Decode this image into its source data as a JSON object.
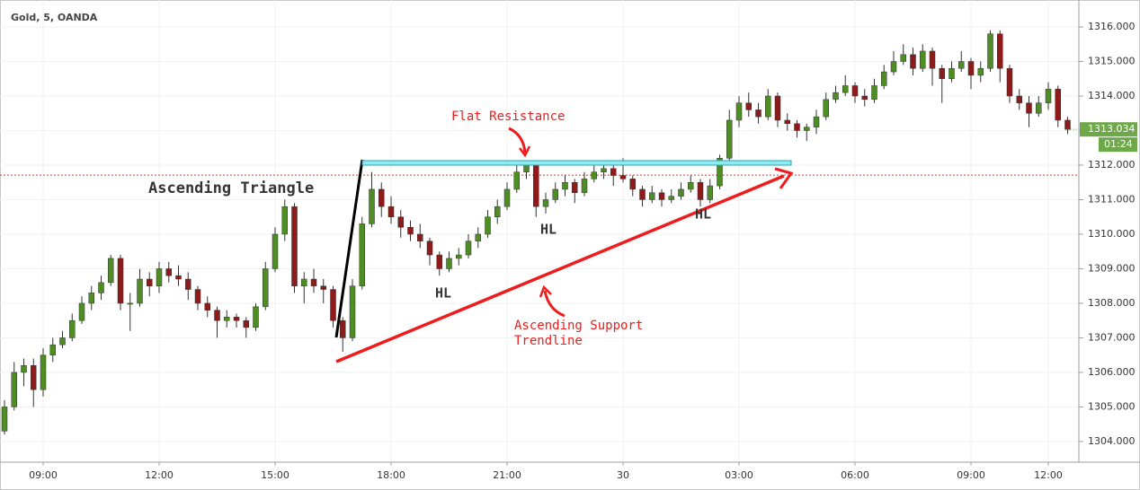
{
  "chart_data": {
    "type": "candlestick",
    "title": "Gold, 5, OANDA",
    "countdown": "01:24",
    "up_color": "#4e8d24",
    "down_color": "#8e1b1b",
    "grid": true,
    "ylim": [
      1303.4,
      1316.78
    ],
    "yticks": [
      {
        "value": 1304,
        "label": "1304.000"
      },
      {
        "value": 1305,
        "label": "1305.000"
      },
      {
        "value": 1306,
        "label": "1306.000"
      },
      {
        "value": 1307,
        "label": "1307.000"
      },
      {
        "value": 1308,
        "label": "1308.000"
      },
      {
        "value": 1309,
        "label": "1309.000"
      },
      {
        "value": 1310,
        "label": "1310.000"
      },
      {
        "value": 1311,
        "label": "1311.000"
      },
      {
        "value": 1312,
        "label": "1312.000"
      },
      {
        "value": 1313,
        "label": "1313.000"
      },
      {
        "value": 1314,
        "label": "1314.000"
      },
      {
        "value": 1315,
        "label": "1315.000"
      },
      {
        "value": 1316,
        "label": "1316.000"
      }
    ],
    "xticks": [
      {
        "value": 4,
        "label": "09:00"
      },
      {
        "value": 16,
        "label": "12:00"
      },
      {
        "value": 28,
        "label": "15:00"
      },
      {
        "value": 40,
        "label": "18:00"
      },
      {
        "value": 52,
        "label": "21:00"
      },
      {
        "value": 64,
        "label": "30"
      },
      {
        "value": 76,
        "label": "03:00"
      },
      {
        "value": 88,
        "label": "06:00"
      },
      {
        "value": 100,
        "label": "09:00"
      },
      {
        "value": 108,
        "label": "12:00"
      }
    ],
    "reference_line": 1311.71,
    "candles": [
      [
        1304.3,
        1305.2,
        1304.2,
        1305.0
      ],
      [
        1305.0,
        1306.3,
        1304.9,
        1306.0
      ],
      [
        1306.0,
        1306.4,
        1305.6,
        1306.2
      ],
      [
        1306.2,
        1306.4,
        1305.0,
        1305.5
      ],
      [
        1305.5,
        1306.7,
        1305.3,
        1306.5
      ],
      [
        1306.5,
        1307.0,
        1306.3,
        1306.8
      ],
      [
        1306.8,
        1307.2,
        1306.7,
        1307.0
      ],
      [
        1307.0,
        1307.7,
        1306.9,
        1307.5
      ],
      [
        1307.5,
        1308.2,
        1307.4,
        1308.0
      ],
      [
        1308.0,
        1308.5,
        1307.8,
        1308.3
      ],
      [
        1308.3,
        1308.8,
        1308.1,
        1308.6
      ],
      [
        1308.6,
        1309.4,
        1308.5,
        1309.3
      ],
      [
        1309.3,
        1309.4,
        1307.8,
        1308.0
      ],
      [
        1308.0,
        1308.3,
        1307.2,
        1308.0
      ],
      [
        1308.0,
        1309.0,
        1307.9,
        1308.7
      ],
      [
        1308.7,
        1308.9,
        1308.2,
        1308.5
      ],
      [
        1308.5,
        1309.2,
        1308.3,
        1309.0
      ],
      [
        1309.0,
        1309.2,
        1308.6,
        1308.8
      ],
      [
        1308.8,
        1309.1,
        1308.5,
        1308.7
      ],
      [
        1308.7,
        1308.9,
        1308.1,
        1308.4
      ],
      [
        1308.4,
        1308.5,
        1307.8,
        1308.0
      ],
      [
        1308.0,
        1308.2,
        1307.6,
        1307.8
      ],
      [
        1307.8,
        1307.9,
        1307.0,
        1307.5
      ],
      [
        1307.5,
        1307.8,
        1307.3,
        1307.6
      ],
      [
        1307.6,
        1307.7,
        1307.3,
        1307.5
      ],
      [
        1307.5,
        1307.6,
        1307.0,
        1307.3
      ],
      [
        1307.3,
        1308.0,
        1307.2,
        1307.9
      ],
      [
        1307.9,
        1309.2,
        1307.8,
        1309.0
      ],
      [
        1309.0,
        1310.2,
        1308.9,
        1310.0
      ],
      [
        1310.0,
        1311.0,
        1309.8,
        1310.8
      ],
      [
        1310.8,
        1310.9,
        1308.3,
        1308.5
      ],
      [
        1308.5,
        1308.9,
        1308.0,
        1308.7
      ],
      [
        1308.7,
        1309.0,
        1308.3,
        1308.5
      ],
      [
        1308.5,
        1308.7,
        1308.0,
        1308.4
      ],
      [
        1308.4,
        1308.5,
        1307.3,
        1307.5
      ],
      [
        1307.5,
        1307.6,
        1306.6,
        1307.0
      ],
      [
        1307.0,
        1308.7,
        1306.9,
        1308.5
      ],
      [
        1308.5,
        1310.5,
        1308.4,
        1310.3
      ],
      [
        1310.3,
        1311.8,
        1310.2,
        1311.3
      ],
      [
        1311.3,
        1311.5,
        1310.5,
        1310.8
      ],
      [
        1310.8,
        1311.1,
        1310.3,
        1310.5
      ],
      [
        1310.5,
        1310.7,
        1309.9,
        1310.2
      ],
      [
        1310.2,
        1310.4,
        1309.8,
        1310.0
      ],
      [
        1310.0,
        1310.3,
        1309.6,
        1309.8
      ],
      [
        1309.8,
        1309.9,
        1309.1,
        1309.4
      ],
      [
        1309.4,
        1309.5,
        1308.8,
        1309.0
      ],
      [
        1309.0,
        1309.5,
        1308.9,
        1309.3
      ],
      [
        1309.3,
        1309.6,
        1309.1,
        1309.4
      ],
      [
        1309.4,
        1310.0,
        1309.3,
        1309.8
      ],
      [
        1309.8,
        1310.2,
        1309.6,
        1310.0
      ],
      [
        1310.0,
        1310.7,
        1309.9,
        1310.5
      ],
      [
        1310.5,
        1311.0,
        1310.3,
        1310.8
      ],
      [
        1310.8,
        1311.5,
        1310.7,
        1311.3
      ],
      [
        1311.3,
        1312.0,
        1311.2,
        1311.8
      ],
      [
        1311.8,
        1312.1,
        1311.6,
        1312.0
      ],
      [
        1312.0,
        1312.0,
        1310.5,
        1310.8
      ],
      [
        1310.8,
        1311.2,
        1310.6,
        1311.0
      ],
      [
        1311.0,
        1311.5,
        1310.9,
        1311.3
      ],
      [
        1311.3,
        1311.7,
        1311.1,
        1311.5
      ],
      [
        1311.5,
        1311.6,
        1310.9,
        1311.2
      ],
      [
        1311.2,
        1311.8,
        1311.1,
        1311.6
      ],
      [
        1311.6,
        1312.0,
        1311.5,
        1311.8
      ],
      [
        1311.8,
        1312.1,
        1311.6,
        1311.9
      ],
      [
        1311.9,
        1312.0,
        1311.4,
        1311.7
      ],
      [
        1311.7,
        1312.2,
        1311.5,
        1311.6
      ],
      [
        1311.6,
        1311.7,
        1311.1,
        1311.3
      ],
      [
        1311.3,
        1311.4,
        1310.8,
        1311.0
      ],
      [
        1311.0,
        1311.4,
        1310.9,
        1311.2
      ],
      [
        1311.2,
        1311.3,
        1310.8,
        1311.0
      ],
      [
        1311.0,
        1311.3,
        1310.9,
        1311.1
      ],
      [
        1311.1,
        1311.5,
        1311.0,
        1311.3
      ],
      [
        1311.3,
        1311.7,
        1311.2,
        1311.5
      ],
      [
        1311.5,
        1311.6,
        1310.8,
        1311.0
      ],
      [
        1311.0,
        1311.6,
        1310.9,
        1311.4
      ],
      [
        1311.4,
        1312.3,
        1311.3,
        1312.2
      ],
      [
        1312.2,
        1313.6,
        1312.1,
        1313.3
      ],
      [
        1313.3,
        1314.0,
        1313.1,
        1313.8
      ],
      [
        1313.8,
        1314.1,
        1313.4,
        1313.6
      ],
      [
        1313.6,
        1313.8,
        1313.2,
        1313.4
      ],
      [
        1313.4,
        1314.2,
        1313.3,
        1314.0
      ],
      [
        1314.0,
        1314.1,
        1313.1,
        1313.3
      ],
      [
        1313.3,
        1313.5,
        1313.0,
        1313.2
      ],
      [
        1313.2,
        1313.3,
        1312.8,
        1313.0
      ],
      [
        1313.0,
        1313.2,
        1312.7,
        1313.1
      ],
      [
        1313.1,
        1313.6,
        1312.9,
        1313.4
      ],
      [
        1313.4,
        1314.1,
        1313.3,
        1313.9
      ],
      [
        1313.9,
        1314.3,
        1313.8,
        1314.1
      ],
      [
        1314.1,
        1314.6,
        1314.0,
        1314.3
      ],
      [
        1314.3,
        1314.4,
        1313.8,
        1314.0
      ],
      [
        1314.0,
        1314.2,
        1313.7,
        1313.9
      ],
      [
        1313.9,
        1314.5,
        1313.8,
        1314.3
      ],
      [
        1314.3,
        1314.9,
        1314.2,
        1314.7
      ],
      [
        1314.7,
        1315.3,
        1314.6,
        1315.0
      ],
      [
        1315.0,
        1315.5,
        1314.9,
        1315.2
      ],
      [
        1315.2,
        1315.4,
        1314.6,
        1314.8
      ],
      [
        1314.8,
        1315.5,
        1314.7,
        1315.3
      ],
      [
        1315.3,
        1315.4,
        1314.3,
        1314.8
      ],
      [
        1314.8,
        1314.9,
        1313.8,
        1314.5
      ],
      [
        1314.5,
        1315.0,
        1314.4,
        1314.8
      ],
      [
        1314.8,
        1315.3,
        1314.7,
        1315.0
      ],
      [
        1315.0,
        1315.1,
        1314.2,
        1314.6
      ],
      [
        1314.6,
        1315.0,
        1314.4,
        1314.8
      ],
      [
        1314.8,
        1315.9,
        1314.7,
        1315.8
      ],
      [
        1315.8,
        1315.9,
        1314.4,
        1314.8
      ],
      [
        1314.8,
        1314.9,
        1313.8,
        1314.0
      ],
      [
        1314.0,
        1314.2,
        1313.6,
        1313.8
      ],
      [
        1313.8,
        1314.0,
        1313.1,
        1313.5
      ],
      [
        1313.5,
        1314.0,
        1313.4,
        1313.8
      ],
      [
        1313.8,
        1314.4,
        1313.6,
        1314.2
      ],
      [
        1314.2,
        1314.3,
        1313.1,
        1313.3
      ],
      [
        1313.3,
        1313.4,
        1312.9,
        1313.034
      ]
    ],
    "annotations": {
      "pattern": "Ascending Triangle",
      "resistance": "Flat Resistance",
      "support": [
        "Ascending Support",
        "Trendline"
      ],
      "hl": [
        "HL",
        "HL",
        "HL"
      ]
    }
  }
}
